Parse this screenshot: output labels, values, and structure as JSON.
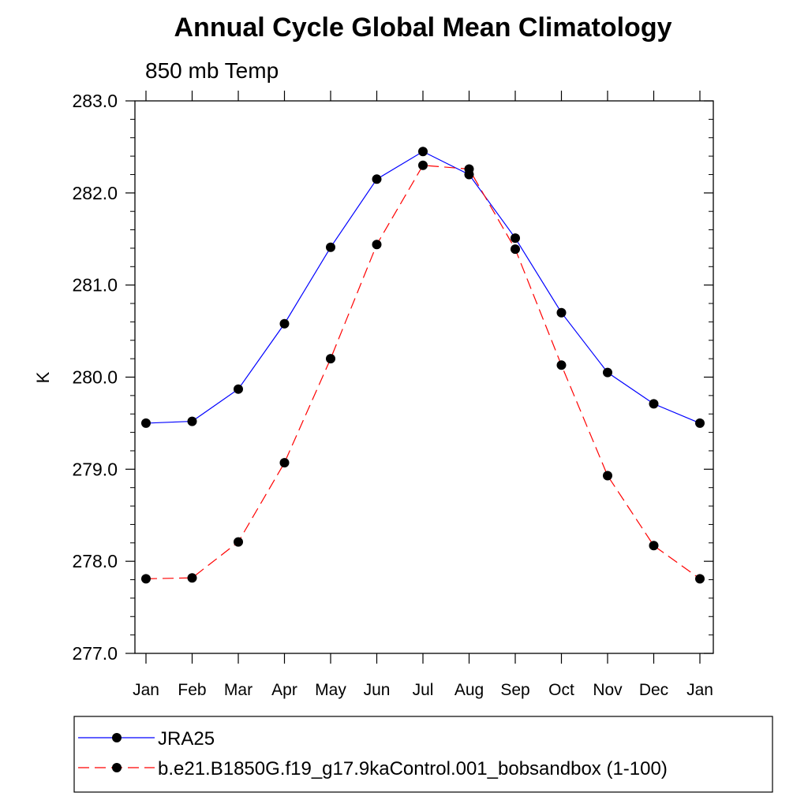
{
  "chart_data": {
    "type": "line",
    "title": "Annual Cycle Global Mean Climatology",
    "subtitle": "850 mb Temp",
    "xlabel": "",
    "ylabel": "K",
    "categories": [
      "Jan",
      "Feb",
      "Mar",
      "Apr",
      "May",
      "Jun",
      "Jul",
      "Aug",
      "Sep",
      "Oct",
      "Nov",
      "Dec",
      "Jan"
    ],
    "ylim": [
      277.0,
      283.0
    ],
    "yticks": [
      277.0,
      278.0,
      279.0,
      280.0,
      281.0,
      282.0,
      283.0
    ],
    "ytick_labels": [
      "277.0",
      "278.0",
      "279.0",
      "280.0",
      "281.0",
      "282.0",
      "283.0"
    ],
    "grid": false,
    "legend_position": "bottom",
    "series": [
      {
        "name": "JRA25",
        "color": "#0000ff",
        "dash": "solid",
        "marker": "circle",
        "values": [
          279.5,
          279.52,
          279.87,
          280.58,
          281.41,
          282.15,
          282.45,
          282.2,
          281.51,
          280.7,
          280.05,
          279.71,
          279.5
        ]
      },
      {
        "name": "b.e21.B1850G.f19_g17.9kaControl.001_bobsandbox (1-100)",
        "color": "#ff0000",
        "dash": "dashed",
        "marker": "circle",
        "values": [
          277.81,
          277.82,
          278.21,
          279.07,
          280.2,
          281.44,
          282.3,
          282.26,
          281.39,
          280.13,
          278.93,
          278.17,
          277.81
        ]
      }
    ]
  }
}
